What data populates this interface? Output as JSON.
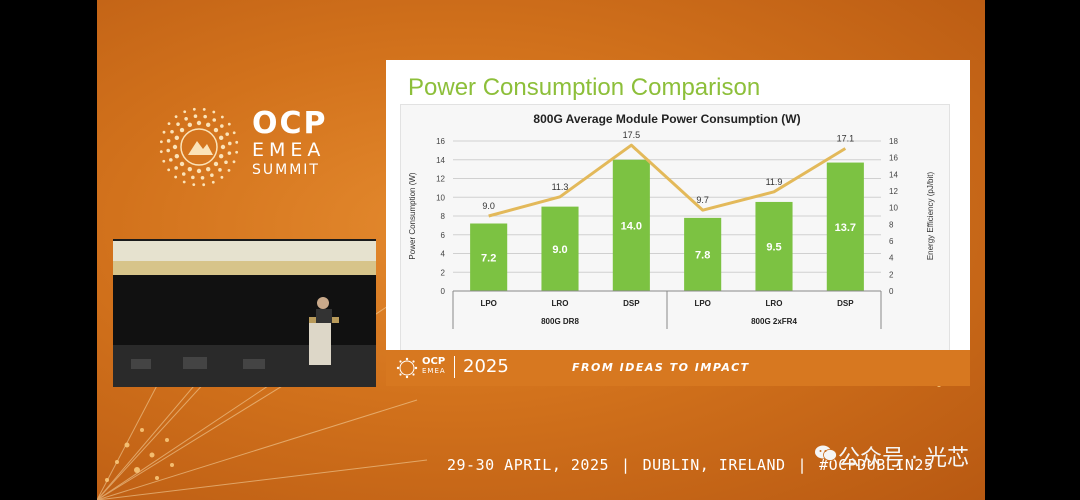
{
  "brand": {
    "logo_line1": "OCP",
    "logo_line2": "EMEA",
    "logo_line3": "SUMMIT",
    "accent_orange": "#d2721c",
    "accent_green": "#8dbf3a",
    "line_color": "#e3b95a"
  },
  "slide": {
    "title": "Power Consumption Comparison",
    "strip_logo_line1": "OCP",
    "strip_logo_line2": "EMEA",
    "strip_year": "2025",
    "strip_tagline": "FROM IDEAS TO IMPACT"
  },
  "footer": {
    "date": "29-30 APRIL, 2025",
    "location": "DUBLIN, IRELAND",
    "hashtag": "#OCPDUBLIN25"
  },
  "watermark": {
    "text": "公众号 · 光芯"
  },
  "chart_data": {
    "type": "bar",
    "title": "800G Average Module Power Consumption (W)",
    "categories": [
      "LPO",
      "LRO",
      "DSP",
      "LPO",
      "LRO",
      "DSP"
    ],
    "groups": [
      {
        "label": "800G DR8",
        "categories": [
          "LPO",
          "LRO",
          "DSP"
        ]
      },
      {
        "label": "800G 2xFR4",
        "categories": [
          "LPO",
          "LRO",
          "DSP"
        ]
      }
    ],
    "series": [
      {
        "type": "bar",
        "axis": "left",
        "values": [
          7.2,
          9.0,
          14.0,
          7.8,
          9.5,
          13.7
        ],
        "labels": [
          "7.2",
          "9.0",
          "14.0",
          "7.8",
          "9.5",
          "13.7"
        ]
      },
      {
        "type": "line",
        "axis": "right",
        "values": [
          9.0,
          11.3,
          17.5,
          9.7,
          11.9,
          17.1
        ],
        "labels": [
          "9.0",
          "11.3",
          "17.5",
          "9.7",
          "11.9",
          "17.1"
        ]
      }
    ],
    "ylabel": "Power Consumption (W)",
    "y2label": "Energy Efficiency (pJ/bit)",
    "ylim": [
      0,
      16
    ],
    "y2lim": [
      0,
      18
    ],
    "yticks": [
      "0",
      "2",
      "4",
      "6",
      "8",
      "10",
      "12",
      "14",
      "16"
    ],
    "y2ticks": [
      "0",
      "2",
      "4",
      "6",
      "8",
      "10",
      "12",
      "14",
      "16",
      "18"
    ],
    "grid": true,
    "legend": "none"
  }
}
